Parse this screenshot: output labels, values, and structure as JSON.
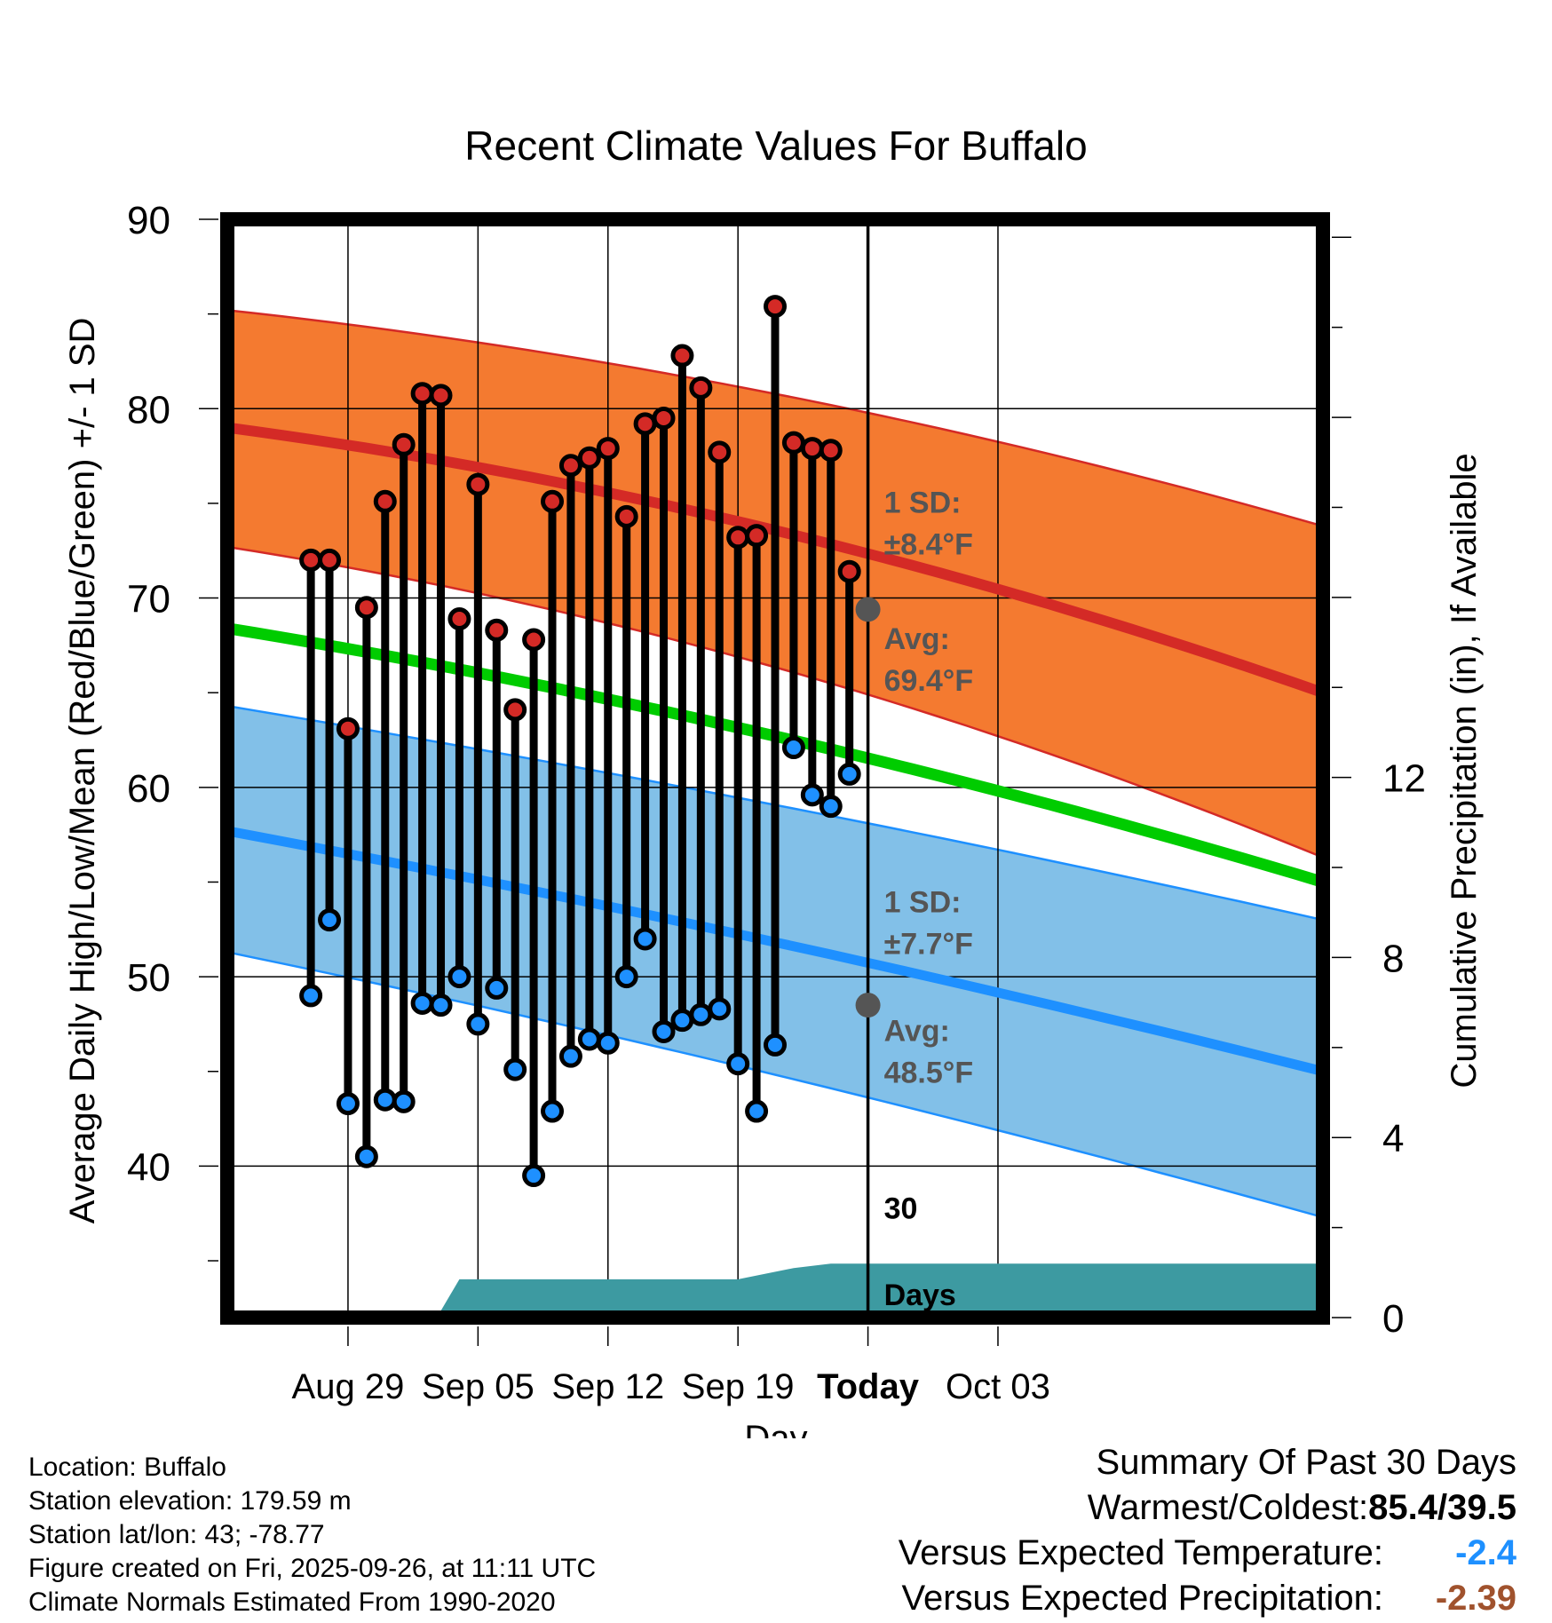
{
  "chart_data": {
    "type": "range-dot",
    "title": "Recent Climate Values For Buffalo",
    "xlabel": "Day",
    "ylabel": "Average Daily High/Low/Mean (Red/Blue/Green) +/- 1 SD",
    "y2label": "Cumulative Precipitation (in), If Available",
    "ylim": [
      32,
      90
    ],
    "y2lim": [
      0,
      24.4
    ],
    "xlim": [
      -3.5,
      55.5
    ],
    "yticks": [
      40,
      50,
      60,
      70,
      80,
      90
    ],
    "y2ticks": [
      0,
      4,
      8,
      12
    ],
    "xticks": [
      {
        "day": 3,
        "label": "Aug 29"
      },
      {
        "day": 10,
        "label": "Sep 05"
      },
      {
        "day": 17,
        "label": "Sep 12"
      },
      {
        "day": 24,
        "label": "Sep 19"
      },
      {
        "day": 31,
        "label": "Today"
      },
      {
        "day": 38,
        "label": "Oct 03"
      }
    ],
    "today_day": 31,
    "observed_start_day": 1,
    "highs": [
      72.0,
      72.0,
      63.1,
      69.5,
      75.1,
      78.1,
      80.8,
      80.7,
      68.9,
      76.0,
      68.3,
      64.1,
      67.8,
      75.1,
      77.0,
      77.4,
      77.9,
      74.3,
      79.2,
      79.5,
      82.8,
      81.1,
      77.7,
      73.2,
      73.3,
      85.4,
      78.2,
      77.9,
      77.8,
      71.4
    ],
    "lows": [
      49.0,
      53.0,
      43.3,
      40.5,
      43.5,
      43.4,
      48.6,
      48.5,
      50.0,
      47.5,
      49.4,
      45.1,
      39.5,
      42.9,
      45.8,
      46.7,
      46.5,
      50.0,
      52.0,
      47.1,
      47.7,
      48.0,
      48.3,
      45.4,
      42.9,
      46.4,
      62.1,
      59.6,
      59.0,
      60.7
    ],
    "normals": {
      "high": {
        "avg_start": 79.0,
        "avg_end": 65.0,
        "sd": 8.4
      },
      "low": {
        "avg_start": 57.7,
        "avg_end": 45.0,
        "sd": 7.7
      },
      "mean": {
        "start": 68.4,
        "end": 55.0
      },
      "high_sd_start": [
        72.7,
        85.2
      ],
      "high_sd_end": [
        56.3,
        73.8
      ],
      "low_sd_start": [
        51.3,
        64.3
      ],
      "low_sd_end": [
        37.3,
        53.0
      ]
    },
    "precip_cumulative": {
      "days": [
        -3.5,
        1.5,
        2.0,
        8.0,
        9.0,
        24.0,
        27.0,
        29.0,
        31.0,
        55.5
      ],
      "values": [
        0.0,
        0.0,
        0.15,
        0.15,
        0.85,
        0.85,
        1.1,
        1.2,
        1.2,
        1.2
      ]
    },
    "annotations": {
      "high_sd": "1 SD:",
      "high_sd_val": "±8.4°F",
      "high_avg": "Avg:",
      "high_avg_val": "69.4°F",
      "high_avg_at_today": 69.4,
      "low_sd": "1 SD:",
      "low_sd_val": "±7.7°F",
      "low_avg": "Avg:",
      "low_avg_val": "48.5°F",
      "low_avg_at_today": 48.5,
      "days_num": "30",
      "days_label": "Days"
    },
    "colors": {
      "high_band": "#f47a30",
      "high_line": "#d42a26",
      "low_band": "#82c0e8",
      "low_line": "#1e90ff",
      "mean_line": "#00cc00",
      "precip": "#3d9aa1",
      "high_dot": "#d42a26",
      "low_dot": "#1e90ff",
      "annotation": "#555555"
    }
  },
  "info": {
    "location": "Location: Buffalo",
    "elevation": "Station elevation: 179.59 m",
    "latlon": "Station lat/lon: 43; -78.77",
    "created": "Figure created on Fri, 2025-09-26, at 11:11 UTC",
    "normals": "Climate Normals Estimated From 1990-2020"
  },
  "summary": {
    "title": "Summary Of Past 30 Days",
    "warm_cold_label": "Warmest/Coldest:",
    "warm_cold_value": "85.4/39.5",
    "temp_label": "Versus Expected Temperature:",
    "temp_value": "-2.4",
    "temp_color": "#1e90ff",
    "precip_label": "Versus Expected Precipitation:",
    "precip_value": "-2.39",
    "precip_color": "#a0522d"
  }
}
